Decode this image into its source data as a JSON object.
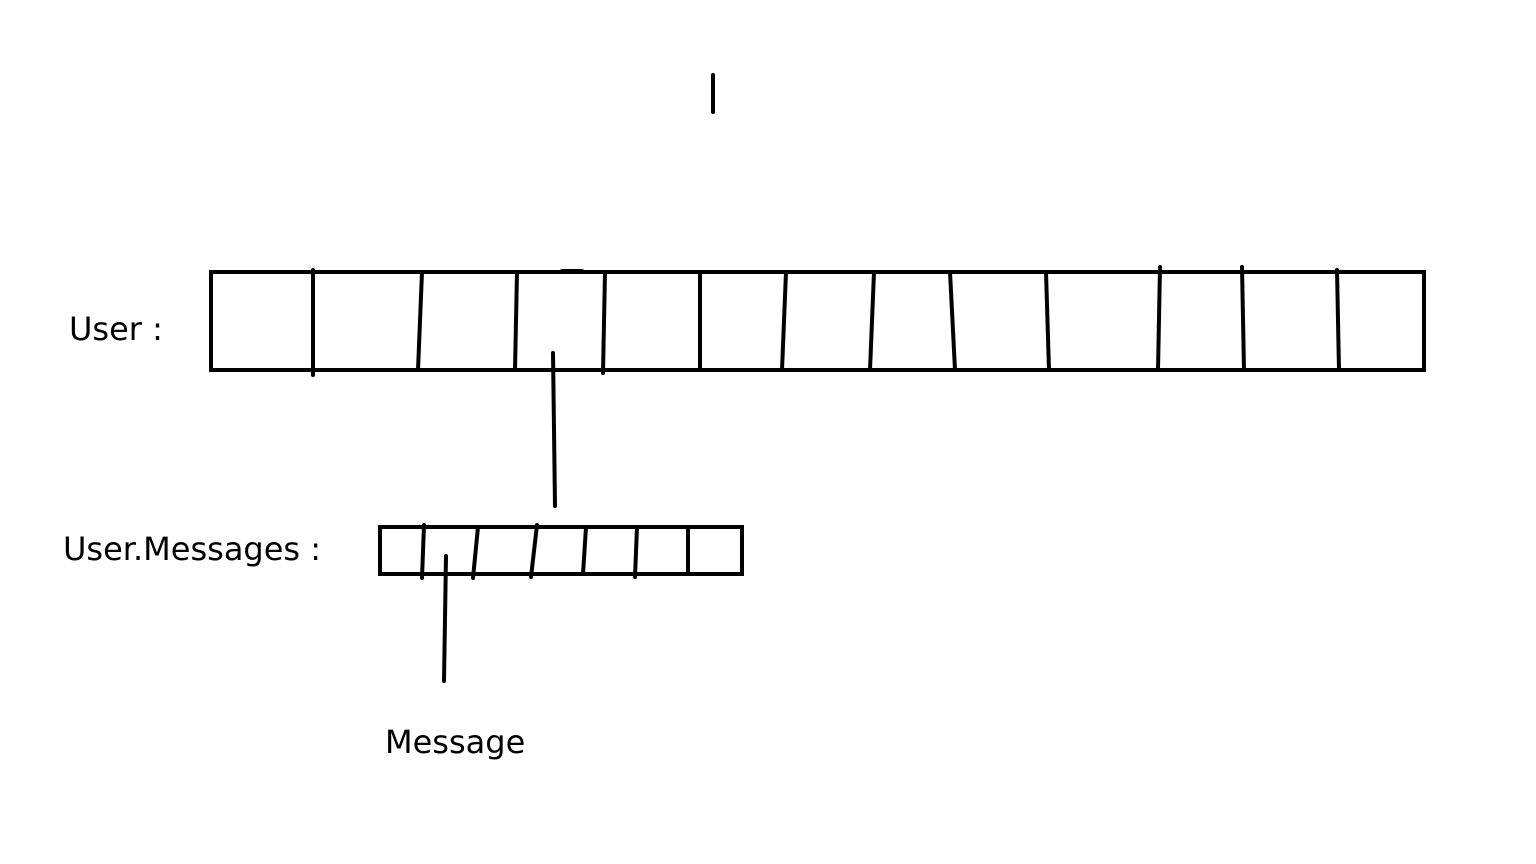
{
  "labels": {
    "user": "User :",
    "user_messages": "User.Messages :",
    "message": "Message"
  },
  "colors": {
    "ink": "#000000",
    "background": "#ffffff"
  }
}
